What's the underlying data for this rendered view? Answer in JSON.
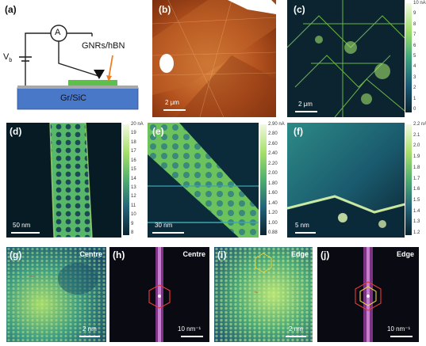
{
  "panels": {
    "a": {
      "label": "(a)",
      "ammeter": "A",
      "vb_main": "V",
      "vb_sub": "b",
      "sample_label": "GNRs/hBN",
      "substrate_label": "Gr/SiC"
    },
    "b": {
      "label": "(b)",
      "scalebar": "2 μm"
    },
    "c": {
      "label": "(c)",
      "scalebar": "2 μm",
      "colorbar_ticks": [
        "10 nA",
        "9",
        "8",
        "7",
        "6",
        "5",
        "4",
        "3",
        "2",
        "1",
        "0"
      ]
    },
    "d": {
      "label": "(d)",
      "scalebar": "50 nm",
      "colorbar_ticks": [
        "20 nA",
        "19",
        "18",
        "17",
        "16",
        "15",
        "14",
        "13",
        "12",
        "11",
        "10",
        "9",
        "8"
      ]
    },
    "e": {
      "label": "(e)",
      "scalebar": "30 nm",
      "colorbar_ticks": [
        "2.90 nA",
        "2.80",
        "2.60",
        "2.40",
        "2.20",
        "2.00",
        "1.80",
        "1.60",
        "1.40",
        "1.20",
        "1.00",
        "0.88"
      ]
    },
    "f": {
      "label": "(f)",
      "scalebar": "5 nm",
      "colorbar_ticks": [
        "2.2 nA",
        "2.1",
        "2.0",
        "1.9",
        "1.8",
        "1.7",
        "1.6",
        "1.5",
        "1.4",
        "1.3",
        "1.2"
      ]
    },
    "g": {
      "label": "(g)",
      "tag": "Centre",
      "scalebar": "2 nm"
    },
    "h": {
      "label": "(h)",
      "tag": "Centre",
      "scalebar": "10 nm⁻¹"
    },
    "i": {
      "label": "(i)",
      "tag": "Edge",
      "scalebar": "2 nm"
    },
    "j": {
      "label": "(j)",
      "tag": "Edge",
      "scalebar": "10 nm⁻¹"
    }
  },
  "colors": {
    "afm_brown": "#b5531f",
    "current_dark": "#0b2430",
    "current_green": "#7ccd4a",
    "fft_dark": "#0a0a12",
    "fft_magenta": "#c84fd0",
    "substrate_blue": "#4a78c8",
    "sample_green": "#5cc04a",
    "arrow_orange": "#ef7f22",
    "hex_red": "#e03a3a"
  }
}
